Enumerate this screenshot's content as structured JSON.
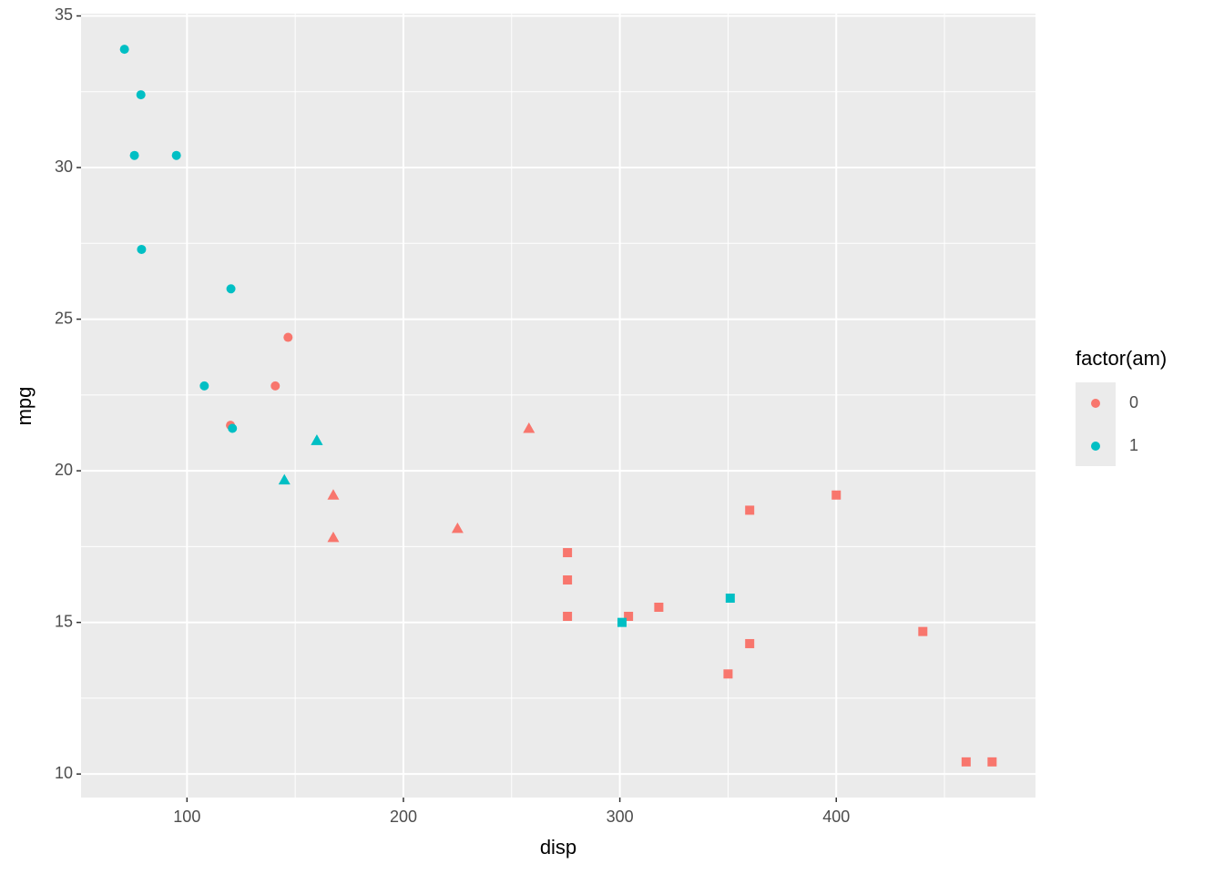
{
  "chart_data": {
    "type": "scatter",
    "x_label": "disp",
    "y_label": "mpg",
    "legend_title": "factor(am)",
    "legend": "right",
    "xlim": [
      51.05,
      492.05
    ],
    "ylim": [
      9.225,
      35.075
    ],
    "xticks": [
      100,
      200,
      300,
      400
    ],
    "yticks": [
      10,
      15,
      20,
      25,
      30,
      35
    ],
    "x_minor_ticks": [
      150,
      250,
      350,
      450
    ],
    "y_minor_ticks": [
      12.5,
      17.5,
      22.5,
      27.5,
      32.5
    ],
    "grid": true,
    "series": [
      {
        "name": "0",
        "color": "#f8766d",
        "x": [
          258,
          360,
          225,
          360,
          146.7,
          140.8,
          167.6,
          167.6,
          275.8,
          275.8,
          275.8,
          472,
          460,
          440,
          120.1,
          318,
          304,
          350,
          400
        ],
        "values": [
          21.4,
          18.7,
          18.1,
          14.3,
          24.4,
          22.8,
          19.2,
          17.8,
          16.4,
          17.3,
          15.2,
          10.4,
          10.4,
          14.7,
          21.5,
          15.5,
          15.2,
          13.3,
          19.2
        ],
        "shapes": [
          "triangle",
          "square",
          "triangle",
          "square",
          "circle",
          "circle",
          "triangle",
          "triangle",
          "square",
          "square",
          "square",
          "square",
          "square",
          "square",
          "circle",
          "square",
          "square",
          "square",
          "square"
        ]
      },
      {
        "name": "1",
        "color": "#00bfc4",
        "x": [
          160,
          160,
          108,
          78.7,
          75.7,
          71.1,
          79,
          120.3,
          95.1,
          351,
          145,
          301,
          121
        ],
        "values": [
          21,
          21,
          22.8,
          32.4,
          30.4,
          33.9,
          27.3,
          26,
          30.4,
          15.8,
          19.7,
          15,
          21.4
        ],
        "shapes": [
          "triangle",
          "triangle",
          "circle",
          "circle",
          "circle",
          "circle",
          "circle",
          "circle",
          "circle",
          "square",
          "triangle",
          "square",
          "circle"
        ]
      }
    ]
  }
}
